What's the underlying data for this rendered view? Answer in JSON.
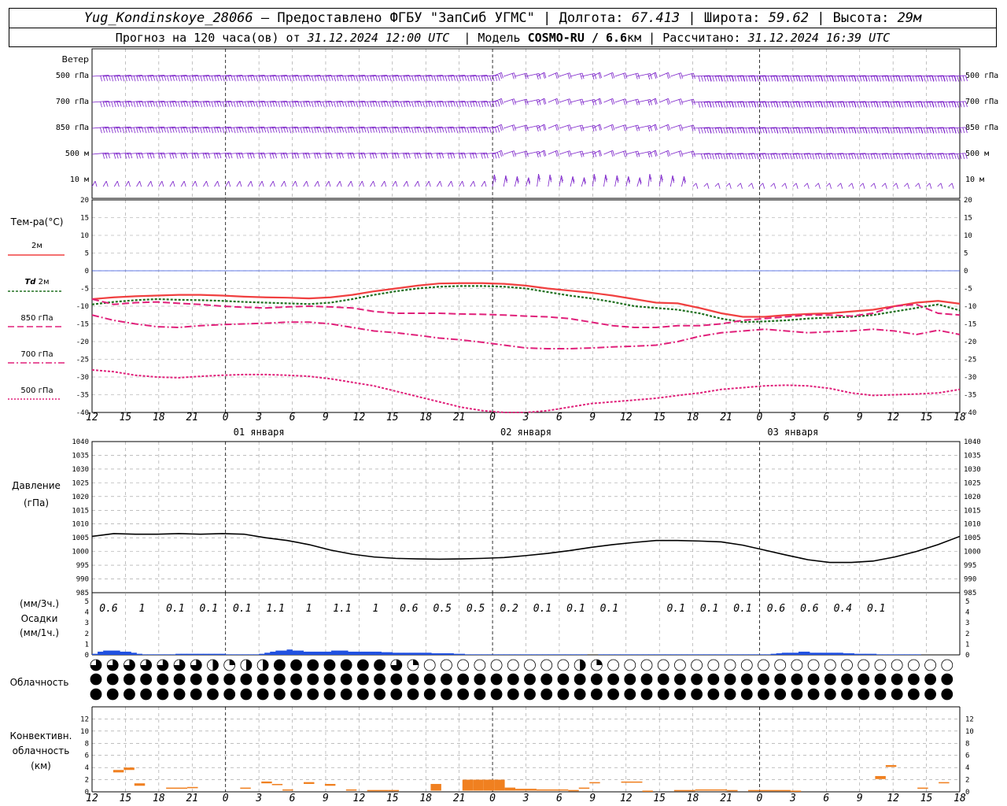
{
  "header": {
    "station": "Yug_Kondinskoye_28066",
    "sep1": " – ",
    "provider": "Предоставлено ФГБУ \"ЗапСиб УГМС\"",
    "bar": " | ",
    "lon_label": "Долгота: ",
    "lon_value": "67.413",
    "lat_label": "Широта: ",
    "lat_value": "59.62",
    "alt_label": "Высота: ",
    "alt_value": "29м",
    "forecast_prefix": "Прогноз на 120 часа(ов) от ",
    "forecast_time": "31.12.2024 12:00 UTC",
    "model_prefix": "  | Модель ",
    "model_name": "COSMO-RU / 6.6",
    "model_unit": "км",
    "calc_prefix": " | Рассчитано: ",
    "calc_time": "31.12.2024 16:39 UTC"
  },
  "chart_data": [
    {
      "type": "line",
      "panel": "wind",
      "title": "Ветер",
      "levels": [
        "500 гПа",
        "700 гПа",
        "850 гПа",
        "500 м",
        "10 м"
      ],
      "note": "wind barbs at each level, every 1 hour"
    },
    {
      "type": "line",
      "panel": "temperature",
      "ylabel": "Тем-ра(°C)",
      "ylim": [
        -40,
        20
      ],
      "yticks": [
        20,
        15,
        10,
        5,
        0,
        -5,
        -10,
        -15,
        -20,
        -25,
        -30,
        -35,
        -40
      ],
      "x_hours": [
        0,
        3,
        6,
        9,
        12,
        15,
        18,
        21,
        24,
        27,
        30,
        33,
        36,
        39,
        42,
        45,
        48,
        51,
        54,
        57,
        60,
        63,
        66,
        69,
        72,
        75,
        78,
        81,
        84,
        87,
        90,
        93,
        96,
        99,
        102,
        105,
        108,
        111,
        114,
        117,
        120
      ],
      "series": [
        {
          "name": "2м",
          "color": "#f04040",
          "style": "solid",
          "values": [
            -8,
            -7.5,
            -7.2,
            -7,
            -6.8,
            -6.8,
            -7,
            -7.3,
            -7.5,
            -7.6,
            -7.8,
            -7.5,
            -6.8,
            -5.8,
            -5,
            -4.2,
            -3.6,
            -3.5,
            -3.5,
            -3.7,
            -4.2,
            -5,
            -5.6,
            -6.2,
            -7,
            -8,
            -9,
            -9.2,
            -10.5,
            -12,
            -13,
            -13,
            -12.5,
            -12.2,
            -12,
            -11.5,
            -11,
            -10,
            -9,
            -8.5,
            -9.3
          ]
        },
        {
          "name": "Td 2м",
          "color": "#207020",
          "style": "dotted",
          "values": [
            -9.5,
            -8.8,
            -8.3,
            -8,
            -8.2,
            -8.3,
            -8.5,
            -8.8,
            -9,
            -9.2,
            -9.4,
            -9,
            -8,
            -6.8,
            -5.8,
            -5,
            -4.5,
            -4.3,
            -4.3,
            -4.5,
            -5,
            -6,
            -7,
            -7.8,
            -8.8,
            -10,
            -10.5,
            -11,
            -12,
            -13.5,
            -14.5,
            -14.3,
            -14,
            -13.5,
            -13.2,
            -13,
            -12.5,
            -11.5,
            -10.5,
            -9.5,
            -11.2
          ]
        },
        {
          "name": "850 гПа",
          "color": "#e0207a",
          "style": "dash",
          "values": [
            -8,
            -9.5,
            -9,
            -8.8,
            -9.2,
            -9.5,
            -10,
            -10.3,
            -10.5,
            -10.2,
            -10,
            -10.2,
            -10.5,
            -11.5,
            -12,
            -12,
            -12,
            -12.2,
            -12.3,
            -12.5,
            -12.8,
            -13,
            -13.5,
            -14.5,
            -15.5,
            -16,
            -16,
            -15.5,
            -15.5,
            -15,
            -14,
            -13.5,
            -13,
            -12.5,
            -12.5,
            -12.8,
            -12,
            -10,
            -9.5,
            -12,
            -12.5
          ]
        },
        {
          "name": "700 гПа",
          "color": "#e0207a",
          "style": "dashdot",
          "values": [
            -12.5,
            -14,
            -15,
            -15.8,
            -16,
            -15.5,
            -15.2,
            -15,
            -14.8,
            -14.5,
            -14.5,
            -15,
            -16,
            -17,
            -17.5,
            -18.2,
            -19,
            -19.5,
            -20.2,
            -21,
            -21.8,
            -22,
            -22,
            -21.8,
            -21.5,
            -21.3,
            -21,
            -20,
            -18.5,
            -17.5,
            -17,
            -16.5,
            -17,
            -17.5,
            -17.2,
            -17,
            -16.5,
            -17,
            -18,
            -16.8,
            -18
          ]
        },
        {
          "name": "500 гПа",
          "color": "#e0207a",
          "style": "dotted",
          "values": [
            -28,
            -28.5,
            -29.5,
            -30,
            -30.2,
            -29.8,
            -29.5,
            -29.3,
            -29.3,
            -29.5,
            -29.8,
            -30.5,
            -31.5,
            -32.5,
            -34,
            -35.5,
            -37,
            -38.5,
            -39.5,
            -40,
            -40,
            -39.5,
            -38.5,
            -37.5,
            -37,
            -36.5,
            -36,
            -35.2,
            -34.5,
            -33.5,
            -33,
            -32.5,
            -32.3,
            -32.5,
            -33.2,
            -34.5,
            -35.2,
            -35,
            -34.8,
            -34.5,
            -33.5
          ]
        }
      ],
      "x_tick_labels": [
        "12",
        "15",
        "18",
        "21",
        "0",
        "3",
        "6",
        "9",
        "12",
        "15",
        "18",
        "21",
        "0",
        "3",
        "6",
        "9",
        "12",
        "15",
        "18",
        "21",
        "0",
        "3",
        "6",
        "9",
        "12",
        "15",
        "18"
      ],
      "date_labels": [
        "01 января",
        "02 января",
        "03 января"
      ]
    },
    {
      "type": "line",
      "panel": "pressure",
      "ylabel": "Давление",
      "ylabel2": "(гПа)",
      "ylim": [
        985,
        1040
      ],
      "yticks": [
        1040,
        1035,
        1030,
        1025,
        1020,
        1015,
        1010,
        1005,
        1000,
        995,
        990,
        985
      ],
      "series": [
        {
          "name": "",
          "color": "#000000",
          "values": [
            1005.5,
            1006.5,
            1006.3,
            1006.3,
            1006.5,
            1006.3,
            1006.5,
            1006.3,
            1005,
            1004,
            1002.5,
            1000.5,
            999,
            998,
            997.5,
            997.3,
            997.2,
            997.3,
            997.5,
            997.8,
            998.5,
            999.3,
            1000.3,
            1001.5,
            1002.5,
            1003.3,
            1004,
            1004,
            1003.8,
            1003.5,
            1002.3,
            1000.5,
            998.7,
            997,
            996,
            996,
            996.5,
            998,
            1000,
            1002.5,
            1005.5
          ]
        }
      ]
    },
    {
      "type": "bar",
      "panel": "precipitation",
      "ylabel_top": "(мм/3ч.)",
      "ylabel": "Осадки",
      "ylabel_bottom": "(мм/1ч.)",
      "ylim": [
        0,
        5
      ],
      "yticks": [
        5,
        4,
        3,
        2,
        1,
        0
      ],
      "sums_3h": [
        "0.6",
        "1",
        "0.1",
        "0.1",
        "0.1",
        "1.1",
        "1",
        "1.1",
        "1",
        "0.6",
        "0.5",
        "0.5",
        "0.2",
        "0.1",
        "0.1",
        "0.1",
        "",
        "0.1",
        "0.1",
        "0.1",
        "0.6",
        "0.6",
        "0.4",
        "0.1",
        "",
        "",
        ""
      ],
      "hourly_mm": [
        0.1,
        0.3,
        0.4,
        0.4,
        0.4,
        0.3,
        0.3,
        0.2,
        0.1,
        0.05,
        0.05,
        0.05,
        0.05,
        0.05,
        0.05,
        0.1,
        0.1,
        0.1,
        0.1,
        0.1,
        0.1,
        0.1,
        0.1,
        0.1,
        0.05,
        0.05,
        0.05,
        0.05,
        0.05,
        0.05,
        0.1,
        0.2,
        0.3,
        0.4,
        0.4,
        0.5,
        0.4,
        0.4,
        0.3,
        0.3,
        0.3,
        0.3,
        0.3,
        0.4,
        0.4,
        0.4,
        0.3,
        0.3,
        0.3,
        0.3,
        0.3,
        0.3,
        0.25,
        0.25,
        0.2,
        0.2,
        0.2,
        0.2,
        0.2,
        0.2,
        0.2,
        0.15,
        0.15,
        0.15,
        0.15,
        0.1,
        0.1,
        0.05,
        0.05,
        0.05,
        0.05,
        0.05,
        0.05,
        0.05,
        0.05,
        0.03,
        0.03,
        0.03,
        0.03,
        0.03,
        0.03,
        0.02,
        0.02,
        0.02,
        0.01,
        0.01,
        0.01,
        0.01,
        0.01,
        0,
        0,
        0.03,
        0.03,
        0.03,
        0.03,
        0.03,
        0.03,
        0.03,
        0.03,
        0.03,
        0.03,
        0.03,
        0.03,
        0.03,
        0.03,
        0.03,
        0.03,
        0.03,
        0.03,
        0.03,
        0.03,
        0.03,
        0.03,
        0.03,
        0.03,
        0.03,
        0.03,
        0.03,
        0.03,
        0.03,
        0.03,
        0.05,
        0.1,
        0.15,
        0.2,
        0.2,
        0.2,
        0.3,
        0.3,
        0.2,
        0.2,
        0.2,
        0.2,
        0.2,
        0.2,
        0.15,
        0.15,
        0.1,
        0.1,
        0.1,
        0.1,
        0.05,
        0.05,
        0.03,
        0.03,
        0.03,
        0.02,
        0.02,
        0.02,
        0,
        0,
        0,
        0,
        0,
        0,
        0,
        0,
        0,
        0,
        0
      ]
    },
    {
      "type": "table",
      "panel": "cloudiness",
      "ylabel": "Облачность",
      "rows": [
        "3333333333332333211122224444444444444444433321100000000000000000000002310000000000000000000000000000000000000000000000000000",
        "4444444444444444444444444444444444444444444444444444444444444444444444444444444444444444444444444444444444444444444444444444",
        "4444444444444444444444444444444444444444444444444444444444444444444444444444444444444444444444444444444444444444444444444444"
      ]
    },
    {
      "type": "bar",
      "panel": "convective_cloudiness",
      "ylabel": "Конвективн.",
      "ylabel2": "облачность",
      "ylabel3": "(км)",
      "ylim": [
        0,
        14
      ],
      "yticks": [
        12,
        10,
        8,
        6,
        4,
        2,
        0
      ],
      "segments": [
        {
          "start": 6,
          "end": 9,
          "bottom": 3.2,
          "top": 3.6
        },
        {
          "start": 9,
          "end": 12,
          "bottom": 3.6,
          "top": 4.0
        },
        {
          "start": 12,
          "end": 15,
          "bottom": 1.0,
          "top": 1.4
        },
        {
          "start": 21,
          "end": 27,
          "bottom": 0.5,
          "top": 0.7
        },
        {
          "start": 27,
          "end": 30,
          "bottom": 0.6,
          "top": 0.8
        },
        {
          "start": 42,
          "end": 45,
          "bottom": 0.5,
          "top": 0.7
        },
        {
          "start": 48,
          "end": 51,
          "bottom": 1.4,
          "top": 1.7
        },
        {
          "start": 51,
          "end": 54,
          "bottom": 1.1,
          "top": 1.3
        },
        {
          "start": 54,
          "end": 57,
          "bottom": 0.2,
          "top": 0.4
        },
        {
          "start": 60,
          "end": 63,
          "bottom": 1.3,
          "top": 1.6
        },
        {
          "start": 66,
          "end": 69,
          "bottom": 1.0,
          "top": 1.3
        },
        {
          "start": 72,
          "end": 75,
          "bottom": 0.2,
          "top": 0.4
        },
        {
          "start": 78,
          "end": 84,
          "bottom": 0.2,
          "top": 0.3
        },
        {
          "start": 84,
          "end": 87,
          "bottom": 0.2,
          "top": 0.3
        },
        {
          "start": 96,
          "end": 99,
          "bottom": 0.2,
          "top": 1.3
        },
        {
          "start": 105,
          "end": 108,
          "bottom": 0.2,
          "top": 2.0
        },
        {
          "start": 108,
          "end": 111,
          "bottom": 0.2,
          "top": 2.0
        },
        {
          "start": 111,
          "end": 114,
          "bottom": 0.2,
          "top": 2.0
        },
        {
          "start": 114,
          "end": 117,
          "bottom": 0.2,
          "top": 2.0
        },
        {
          "start": 117,
          "end": 120,
          "bottom": 0.2,
          "top": 0.7
        },
        {
          "start": 120,
          "end": 126,
          "bottom": 0.2,
          "top": 0.5
        },
        {
          "start": 126,
          "end": 135,
          "bottom": 0.2,
          "top": 0.4
        },
        {
          "start": 135,
          "end": 138,
          "bottom": 0.2,
          "top": 0.3
        },
        {
          "start": 138,
          "end": 141,
          "bottom": 0.5,
          "top": 0.7
        },
        {
          "start": 141,
          "end": 144,
          "bottom": 1.4,
          "top": 1.6
        },
        {
          "start": 150,
          "end": 156,
          "bottom": 1.5,
          "top": 1.7
        },
        {
          "start": 156,
          "end": 159,
          "bottom": 0.1,
          "top": 0.2
        },
        {
          "start": 165,
          "end": 171,
          "bottom": 0.1,
          "top": 0.3
        },
        {
          "start": 171,
          "end": 180,
          "bottom": 0.2,
          "top": 0.4
        },
        {
          "start": 180,
          "end": 183,
          "bottom": 0.2,
          "top": 0.3
        },
        {
          "start": 186,
          "end": 189,
          "bottom": 0.2,
          "top": 0.3
        },
        {
          "start": 189,
          "end": 198,
          "bottom": 0.2,
          "top": 0.3
        },
        {
          "start": 198,
          "end": 201,
          "bottom": 0.1,
          "top": 0.2
        },
        {
          "start": 222,
          "end": 225,
          "bottom": 2.1,
          "top": 2.6
        },
        {
          "start": 225,
          "end": 228,
          "bottom": 4.1,
          "top": 4.4
        },
        {
          "start": 234,
          "end": 237,
          "bottom": 0.5,
          "top": 0.7
        },
        {
          "start": 240,
          "end": 243,
          "bottom": 1.4,
          "top": 1.6
        }
      ]
    }
  ],
  "legend": {
    "t2m": "2м",
    "td2m_a": "Td",
    "td2m_b": " 2м",
    "t850": "850 гПа",
    "t700": "700 гПа",
    "t500": "500 гПа"
  },
  "colors": {
    "wind": "#7a1fc9",
    "t2m": "#f04040",
    "td": "#207020",
    "upper": "#e0207a",
    "precip": "#2050e0",
    "convective": "#f08020",
    "zero_line": "#3050e0"
  }
}
